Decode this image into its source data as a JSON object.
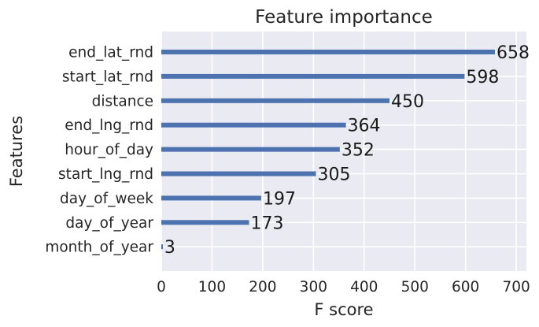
{
  "chart_data": {
    "type": "bar",
    "orientation": "horizontal",
    "title": "Feature importance",
    "xlabel": "F score",
    "ylabel": "Features",
    "categories": [
      "end_lat_rnd",
      "start_lat_rnd",
      "distance",
      "end_lng_rnd",
      "hour_of_day",
      "start_lng_rnd",
      "day_of_week",
      "day_of_year",
      "month_of_year"
    ],
    "values": [
      658,
      598,
      450,
      364,
      352,
      305,
      197,
      173,
      3
    ],
    "xlim": [
      0,
      720
    ],
    "xticks": [
      0,
      100,
      200,
      300,
      400,
      500,
      600,
      700
    ],
    "grid": true,
    "colors": {
      "bar": "#4c72b0",
      "background": "#eaeaf2",
      "grid": "#ffffff"
    }
  }
}
